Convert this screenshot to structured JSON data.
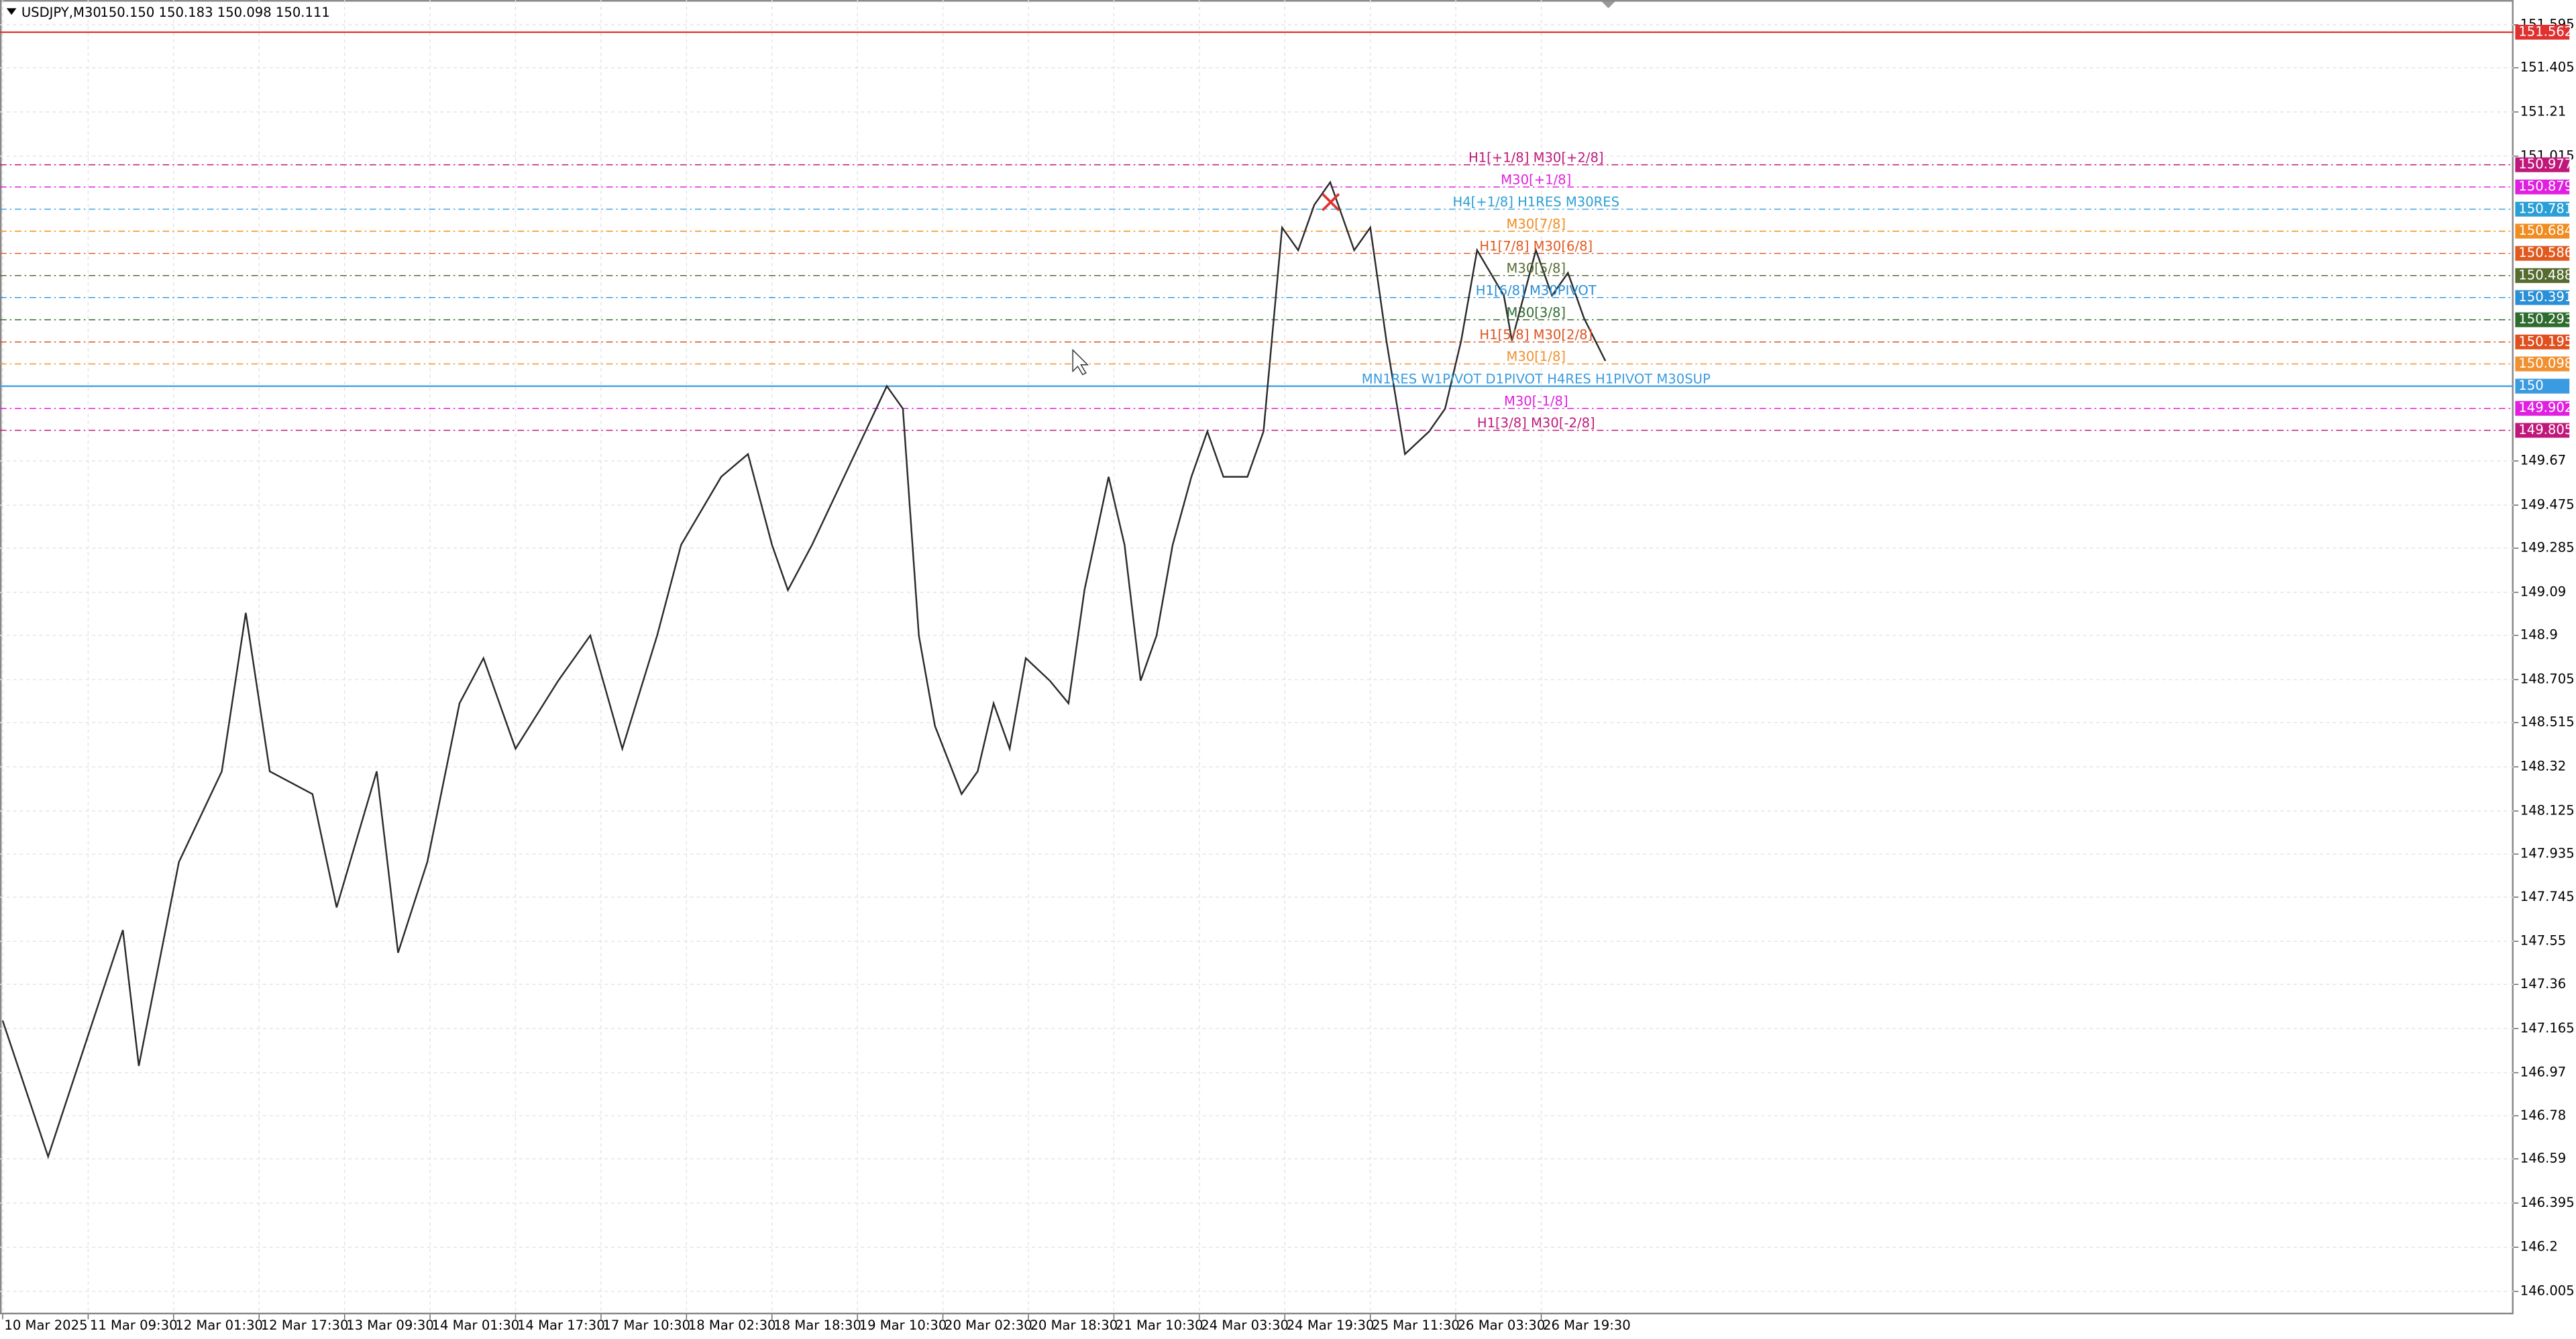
{
  "chart_data": {
    "type": "line",
    "symbol": "USDJPY,M30",
    "ohlc": "150.150 150.183 150.098 150.111",
    "line_color": "#2b2b2b",
    "grid": true,
    "x": [
      0,
      17,
      45,
      51,
      66,
      82,
      91,
      100,
      116,
      125,
      140,
      148,
      159,
      171,
      180,
      192,
      208,
      220,
      232,
      245,
      254,
      269,
      279,
      288,
      294,
      303,
      315,
      331,
      337,
      343,
      349,
      359,
      365,
      371,
      377,
      383,
      392,
      399,
      405,
      414,
      420,
      426,
      432,
      438,
      445,
      451,
      457,
      466,
      472,
      479,
      485,
      491,
      497,
      506,
      512,
      518,
      525,
      534,
      540,
      546,
      552,
      562,
      565,
      574,
      580,
      586,
      592,
      600
    ],
    "values": [
      147.2,
      146.6,
      147.6,
      147.0,
      147.9,
      148.3,
      149.0,
      148.3,
      148.2,
      147.7,
      148.3,
      147.5,
      147.9,
      148.6,
      148.8,
      148.4,
      148.7,
      148.9,
      148.4,
      148.9,
      149.3,
      149.6,
      149.7,
      149.3,
      149.1,
      149.3,
      149.6,
      150.0,
      149.9,
      148.9,
      148.5,
      148.2,
      148.3,
      148.6,
      148.4,
      148.8,
      148.7,
      148.6,
      149.1,
      149.6,
      149.3,
      148.7,
      148.9,
      149.3,
      149.6,
      149.8,
      149.6,
      149.6,
      149.8,
      150.7,
      150.6,
      150.8,
      150.9,
      150.6,
      150.7,
      150.2,
      149.7,
      149.8,
      149.9,
      150.2,
      150.6,
      150.4,
      150.2,
      150.6,
      150.4,
      150.5,
      150.3,
      150.111
    ],
    "xlim": [
      -1,
      940
    ],
    "xticks": [
      {
        "value": 0,
        "label": "10 Mar 2025"
      },
      {
        "value": 32,
        "label": "11 Mar 09:30"
      },
      {
        "value": 64,
        "label": "12 Mar 01:30"
      },
      {
        "value": 96,
        "label": "12 Mar 17:30"
      },
      {
        "value": 128,
        "label": "13 Mar 09:30"
      },
      {
        "value": 160,
        "label": "14 Mar 01:30"
      },
      {
        "value": 192,
        "label": "14 Mar 17:30"
      },
      {
        "value": 224,
        "label": "17 Mar 10:30"
      },
      {
        "value": 256,
        "label": "18 Mar 02:30"
      },
      {
        "value": 288,
        "label": "18 Mar 18:30"
      },
      {
        "value": 320,
        "label": "19 Mar 10:30"
      },
      {
        "value": 352,
        "label": "20 Mar 02:30"
      },
      {
        "value": 384,
        "label": "20 Mar 18:30"
      },
      {
        "value": 416,
        "label": "21 Mar 10:30"
      },
      {
        "value": 448,
        "label": "24 Mar 03:30"
      },
      {
        "value": 480,
        "label": "24 Mar 19:30"
      },
      {
        "value": 512,
        "label": "25 Mar 11:30"
      },
      {
        "value": 544,
        "label": "26 Mar 03:30"
      },
      {
        "value": 576,
        "label": "26 Mar 19:30"
      }
    ],
    "ylim": [
      145.904,
      151.704
    ],
    "yticks": [
      151.595,
      151.405,
      151.21,
      151.015,
      149.67,
      149.475,
      149.285,
      149.09,
      148.9,
      148.705,
      148.515,
      148.32,
      148.125,
      147.935,
      147.745,
      147.55,
      147.36,
      147.165,
      146.97,
      146.78,
      146.59,
      146.395,
      146.2,
      146.005
    ],
    "levels": [
      {
        "price": 151.562,
        "color": "#e03030",
        "dash": false
      },
      {
        "price": 150.977,
        "label": "H1[+1/8] M30[+2/8]",
        "color": "#c0187a",
        "dash": true
      },
      {
        "price": 150.879,
        "label": "M30[+1/8]",
        "color": "#e020e0",
        "dash": true
      },
      {
        "price": 150.781,
        "label": "H4[+1/8] H1RES M30RES",
        "color": "#2a9fd6",
        "dash": true
      },
      {
        "price": 150.684,
        "label": "M30[7/8]",
        "color": "#f08c20",
        "dash": true
      },
      {
        "price": 150.586,
        "label": "H1[7/8] M30[6/8]",
        "color": "#e05a20",
        "dash": true
      },
      {
        "price": 150.488,
        "label": "M30[5/8]",
        "color": "#556b2f",
        "dash": true
      },
      {
        "price": 150.391,
        "label": "H1[6/8] M30PIVOT",
        "color": "#2a8fd6",
        "dash": true
      },
      {
        "price": 150.293,
        "label": "M30[3/8]",
        "color": "#2e6b2e",
        "dash": true
      },
      {
        "price": 150.195,
        "label": "H1[5/8] M30[2/8]",
        "color": "#e0501e",
        "dash": true
      },
      {
        "price": 150.098,
        "label": "M30[1/8]",
        "color": "#f09030",
        "dash": true
      },
      {
        "price": 150.0,
        "label": "MN1RES W1PIVOT D1PIVOT H4RES H1PIVOT M30SUP",
        "color": "#3a9be0",
        "dash": false
      },
      {
        "price": 149.902,
        "label": "M30[-1/8]",
        "color": "#e020e0",
        "dash": true
      },
      {
        "price": 149.805,
        "label": "H1[3/8] M30[-2/8]",
        "color": "#c0187a",
        "dash": true
      }
    ]
  }
}
